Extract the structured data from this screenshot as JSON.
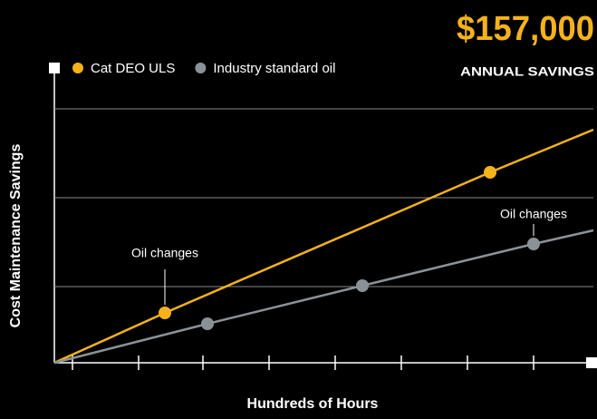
{
  "chart_data": {
    "type": "line",
    "headline": "$157,000",
    "subheadline": "ANNUAL SAVINGS",
    "xlabel": "Hundreds of Hours",
    "ylabel": "Cost Maintenance Savings",
    "xlim": [
      0,
      5.95
    ],
    "ylim": [
      0,
      2.8
    ],
    "xticks": [
      0.2,
      0.93,
      1.64,
      2.37,
      3.1,
      3.83,
      4.56,
      5.29
    ],
    "yticks": [
      0.84,
      1.82,
      2.8
    ],
    "grid": true,
    "series": [
      {
        "name": "Cat DEO ULS",
        "color": "#f5b21b",
        "x": [
          0,
          1.22,
          4.81,
          5.95
        ],
        "values": [
          0,
          0.55,
          2.1,
          2.57
        ]
      },
      {
        "name": "Industry standard oil",
        "color": "#8a9298",
        "x": [
          0,
          1.69,
          3.4,
          5.29,
          5.95
        ],
        "values": [
          0,
          0.43,
          0.85,
          1.31,
          1.46
        ]
      }
    ],
    "annotations": [
      "Oil changes",
      "Oil changes"
    ]
  }
}
